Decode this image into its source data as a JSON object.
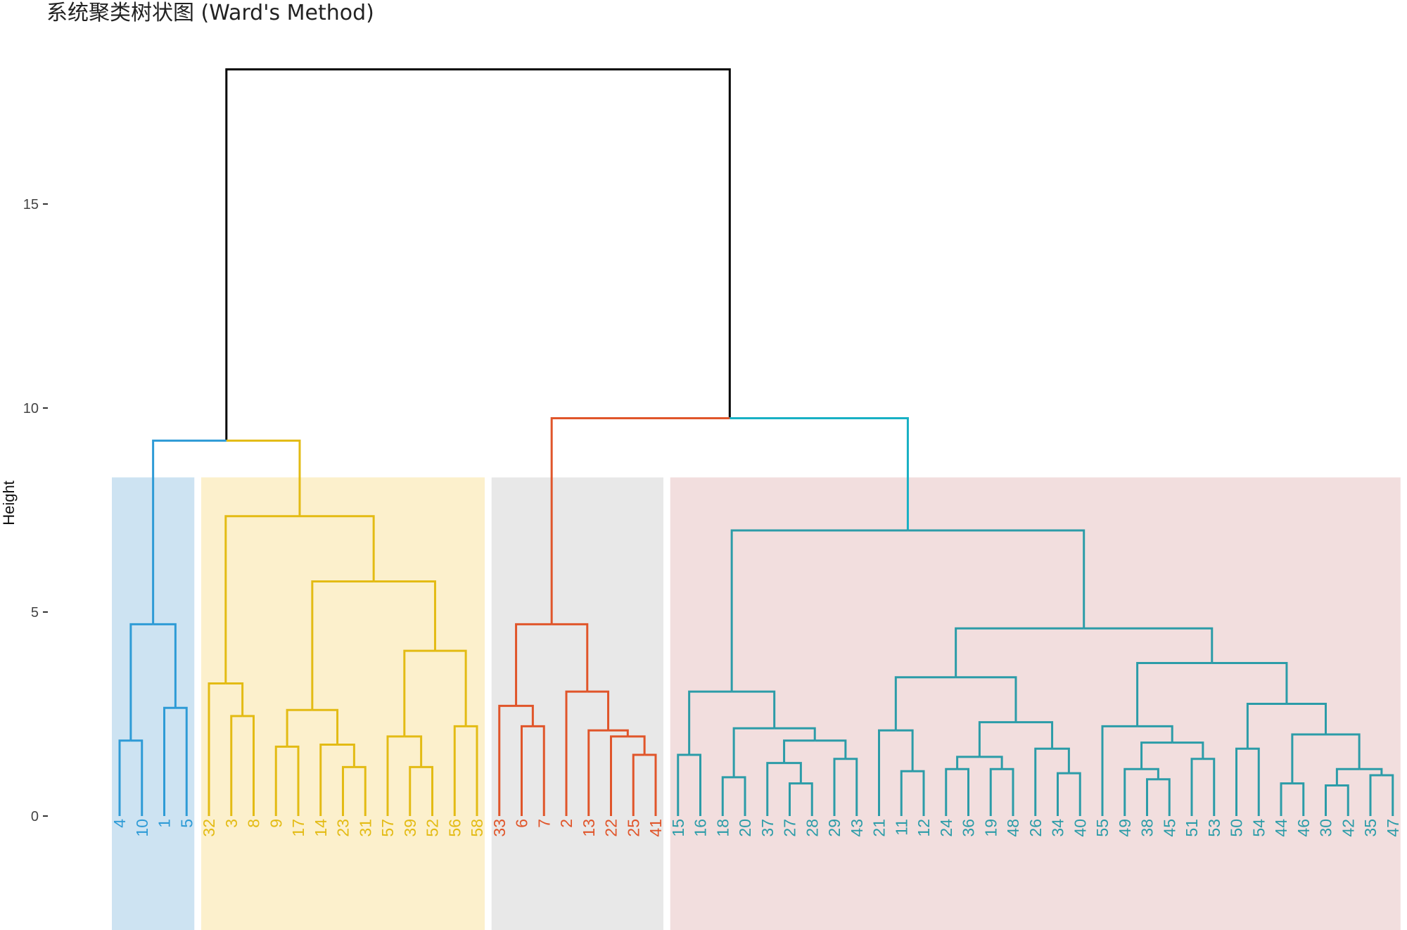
{
  "chart_data": {
    "type": "dendrogram",
    "title": "系统聚类树状图 (Ward's Method)",
    "ylabel": "Height",
    "xlabel": "",
    "y_ticks": [
      0,
      5,
      10,
      15
    ],
    "ylim": [
      0,
      18.5
    ],
    "rect_height": 8.3,
    "leaf_order": [
      "4",
      "10",
      "1",
      "5",
      "32",
      "3",
      "8",
      "9",
      "17",
      "14",
      "23",
      "31",
      "57",
      "39",
      "52",
      "56",
      "58",
      "33",
      "6",
      "7",
      "2",
      "13",
      "22",
      "25",
      "41",
      "15",
      "16",
      "18",
      "20",
      "37",
      "27",
      "28",
      "29",
      "43",
      "21",
      "11",
      "12",
      "24",
      "36",
      "19",
      "48",
      "26",
      "34",
      "40",
      "55",
      "49",
      "38",
      "45",
      "51",
      "53",
      "50",
      "54",
      "44",
      "46",
      "30",
      "42",
      "35",
      "47"
    ],
    "clusters": [
      {
        "leaves": [
          "4",
          "10",
          "1",
          "5"
        ],
        "line_color": "#2E9BD6",
        "fill_color": "#CDE3F2"
      },
      {
        "leaves": [
          "32",
          "3",
          "8",
          "9",
          "17",
          "14",
          "23",
          "31",
          "57",
          "39",
          "52",
          "56",
          "58"
        ],
        "line_color": "#E3BB14",
        "fill_color": "#FCF0CC"
      },
      {
        "leaves": [
          "33",
          "6",
          "7",
          "2",
          "13",
          "22",
          "25",
          "41"
        ],
        "line_color": "#E0552A",
        "fill_color": "#E8E8E8"
      },
      {
        "leaves": [
          "15",
          "16",
          "18",
          "20",
          "37",
          "27",
          "28",
          "29",
          "43",
          "21",
          "11",
          "12",
          "24",
          "36",
          "19",
          "48",
          "26",
          "34",
          "40",
          "55",
          "49",
          "38",
          "45",
          "51",
          "53",
          "50",
          "54",
          "44",
          "46",
          "30",
          "42",
          "35",
          "47"
        ],
        "line_color": "#2C9CA8",
        "fill_color": "#F2DEDE"
      }
    ],
    "root_color": "#000000",
    "branch_colors": {
      "blue_yellow": "#2E9BD6",
      "red_teal_left": "#E0552A",
      "red_teal_right": "#17B0C4"
    },
    "merges": [
      {
        "a": "4",
        "b": "10",
        "h": 1.85
      },
      {
        "a": "1",
        "b": "5",
        "h": 2.65
      },
      {
        "a": 0,
        "b": 1,
        "h": 4.7
      },
      {
        "a": "3",
        "b": "8",
        "h": 2.45
      },
      {
        "a": "32",
        "b": 3,
        "h": 3.25
      },
      {
        "a": "9",
        "b": "17",
        "h": 1.7
      },
      {
        "a": "23",
        "b": "31",
        "h": 1.2
      },
      {
        "a": "14",
        "b": 6,
        "h": 1.75
      },
      {
        "a": 5,
        "b": 7,
        "h": 2.6
      },
      {
        "a": "39",
        "b": "52",
        "h": 1.2
      },
      {
        "a": "57",
        "b": 9,
        "h": 1.95
      },
      {
        "a": "56",
        "b": "58",
        "h": 2.2
      },
      {
        "a": 10,
        "b": 11,
        "h": 4.05
      },
      {
        "a": 8,
        "b": 12,
        "h": 5.75
      },
      {
        "a": 4,
        "b": 13,
        "h": 7.35
      },
      {
        "a": 2,
        "b": 14,
        "h": 9.2
      },
      {
        "a": "6",
        "b": "7",
        "h": 2.2
      },
      {
        "a": "33",
        "b": 16,
        "h": 2.7
      },
      {
        "a": "25",
        "b": "41",
        "h": 1.5
      },
      {
        "a": "22",
        "b": 18,
        "h": 1.95
      },
      {
        "a": "13",
        "b": 19,
        "h": 2.1
      },
      {
        "a": "2",
        "b": 20,
        "h": 3.05
      },
      {
        "a": 17,
        "b": 21,
        "h": 4.7
      },
      {
        "a": "15",
        "b": "16",
        "h": 1.5
      },
      {
        "a": "18",
        "b": "20",
        "h": 0.95
      },
      {
        "a": "27",
        "b": "28",
        "h": 0.8
      },
      {
        "a": "37",
        "b": 25,
        "h": 1.3
      },
      {
        "a": "29",
        "b": "43",
        "h": 1.4
      },
      {
        "a": 26,
        "b": 27,
        "h": 1.85
      },
      {
        "a": 24,
        "b": 28,
        "h": 2.15
      },
      {
        "a": 23,
        "b": 29,
        "h": 3.05
      },
      {
        "a": "11",
        "b": "12",
        "h": 1.1
      },
      {
        "a": "21",
        "b": 31,
        "h": 2.1
      },
      {
        "a": "24",
        "b": "36",
        "h": 1.15
      },
      {
        "a": "19",
        "b": "48",
        "h": 1.15
      },
      {
        "a": 33,
        "b": 34,
        "h": 1.45
      },
      {
        "a": "34",
        "b": "40",
        "h": 1.05
      },
      {
        "a": "26",
        "b": 36,
        "h": 1.65
      },
      {
        "a": 35,
        "b": 37,
        "h": 2.3
      },
      {
        "a": 32,
        "b": 38,
        "h": 3.4
      },
      {
        "a": "38",
        "b": "45",
        "h": 0.9
      },
      {
        "a": "49",
        "b": 40,
        "h": 1.15
      },
      {
        "a": "51",
        "b": "53",
        "h": 1.4
      },
      {
        "a": 41,
        "b": 42,
        "h": 1.8
      },
      {
        "a": "55",
        "b": 43,
        "h": 2.2
      },
      {
        "a": "50",
        "b": "54",
        "h": 1.65
      },
      {
        "a": "44",
        "b": "46",
        "h": 0.8
      },
      {
        "a": "30",
        "b": "42",
        "h": 0.75
      },
      {
        "a": "35",
        "b": "47",
        "h": 1.0
      },
      {
        "a": 47,
        "b": 48,
        "h": 1.15
      },
      {
        "a": 46,
        "b": 49,
        "h": 2.0
      },
      {
        "a": 45,
        "b": 50,
        "h": 2.75
      },
      {
        "a": 44,
        "b": 51,
        "h": 3.75
      },
      {
        "a": 39,
        "b": 52,
        "h": 4.6
      },
      {
        "a": 30,
        "b": 53,
        "h": 7.0
      },
      {
        "a": 54,
        "b": 22,
        "h": 9.7
      },
      {
        "a": 22,
        "b": 54,
        "h": 9.75
      },
      {
        "a": 15,
        "b": 56,
        "h": 18.3
      }
    ]
  }
}
